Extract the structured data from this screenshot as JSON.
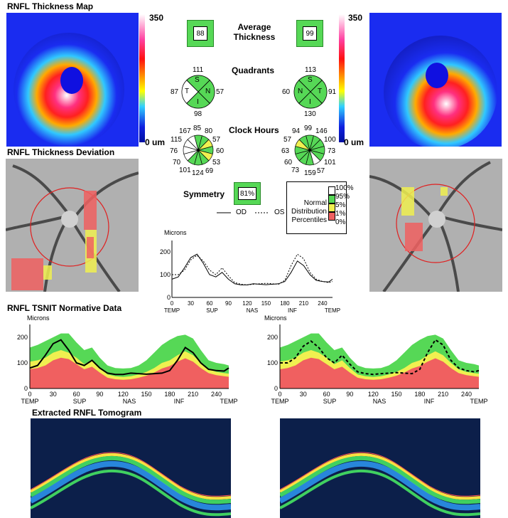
{
  "thickness_map": {
    "title": "RNFL Thickness Map",
    "scale_max": "350",
    "scale_min": "0 um"
  },
  "average_thickness": {
    "label_line1": "Average",
    "label_line2": "Thickness",
    "od": "88",
    "os": "99"
  },
  "quadrants": {
    "label": "Quadrants",
    "od": {
      "top": "111",
      "left": "87",
      "right": "57",
      "bottom": "98",
      "s": "S",
      "t": "T",
      "n": "N",
      "i": "I"
    },
    "os": {
      "top": "113",
      "left": "60",
      "right": "91",
      "bottom": "130",
      "s": "S",
      "n": "N",
      "t": "T",
      "i": "I"
    }
  },
  "clock_hours": {
    "label": "Clock Hours",
    "od": [
      "85",
      "80",
      "57",
      "60",
      "53",
      "69",
      "124",
      "101",
      "70",
      "76",
      "115",
      "167"
    ],
    "os": [
      "99",
      "146",
      "100",
      "73",
      "101",
      "57",
      "159",
      "73",
      "60",
      "63",
      "57",
      "94"
    ]
  },
  "deviation": {
    "title": "RNFL Thickness Deviation"
  },
  "symmetry": {
    "label": "Symmetry",
    "value": "81%"
  },
  "legend": {
    "percent": [
      "100%",
      "95%",
      "5%",
      "1%",
      "0%"
    ],
    "text": [
      "Normal",
      "Distribution",
      "Percentiles"
    ],
    "colors": [
      "#ffffff",
      "#56d856",
      "#f0f050",
      "#f06060"
    ]
  },
  "line_legend": {
    "od": "OD",
    "os": "OS"
  },
  "center_chart": {
    "ylabel": "Microns",
    "yticks": [
      "200",
      "100",
      "0"
    ],
    "xticks": [
      "0",
      "30",
      "60",
      "90",
      "120",
      "150",
      "180",
      "210",
      "240"
    ],
    "xcats": [
      "TEMP",
      "SUP",
      "NAS",
      "INF",
      "TEMP"
    ]
  },
  "tsnit": {
    "title": "RNFL TSNIT Normative Data",
    "ylabel": "Microns",
    "yticks": [
      "200",
      "100",
      "0"
    ],
    "xticks": [
      "0",
      "30",
      "60",
      "90",
      "120",
      "150",
      "180",
      "210",
      "240"
    ],
    "xcats": [
      "TEMP",
      "SUP",
      "NAS",
      "INF",
      "TEMP"
    ]
  },
  "tomogram": {
    "title": "Extracted RNFL Tomogram"
  },
  "colors": {
    "green": "#56d856",
    "yellow": "#f0f050",
    "red": "#f06060",
    "map_blue": "#1a2cf0",
    "tomo_bg": "#0c1f4a"
  },
  "chart_data": {
    "type": "line",
    "x": [
      0,
      10,
      20,
      30,
      40,
      50,
      60,
      70,
      80,
      90,
      100,
      110,
      120,
      130,
      140,
      150,
      160,
      170,
      180,
      190,
      200,
      210,
      220,
      230,
      240,
      250,
      256
    ],
    "series": [
      {
        "name": "OD",
        "values": [
          80,
          90,
          130,
          175,
          190,
          150,
          100,
          90,
          110,
          80,
          60,
          55,
          55,
          60,
          58,
          56,
          58,
          60,
          70,
          110,
          160,
          140,
          100,
          75,
          70,
          68,
          80
        ]
      },
      {
        "name": "OS",
        "values": [
          100,
          100,
          120,
          165,
          185,
          160,
          120,
          100,
          130,
          95,
          65,
          58,
          55,
          58,
          60,
          62,
          60,
          58,
          75,
          140,
          190,
          170,
          110,
          80,
          70,
          65,
          70
        ]
      }
    ],
    "xlabel": "",
    "ylabel": "Microns",
    "ylim": [
      0,
      250
    ],
    "xlim": [
      0,
      256
    ]
  }
}
